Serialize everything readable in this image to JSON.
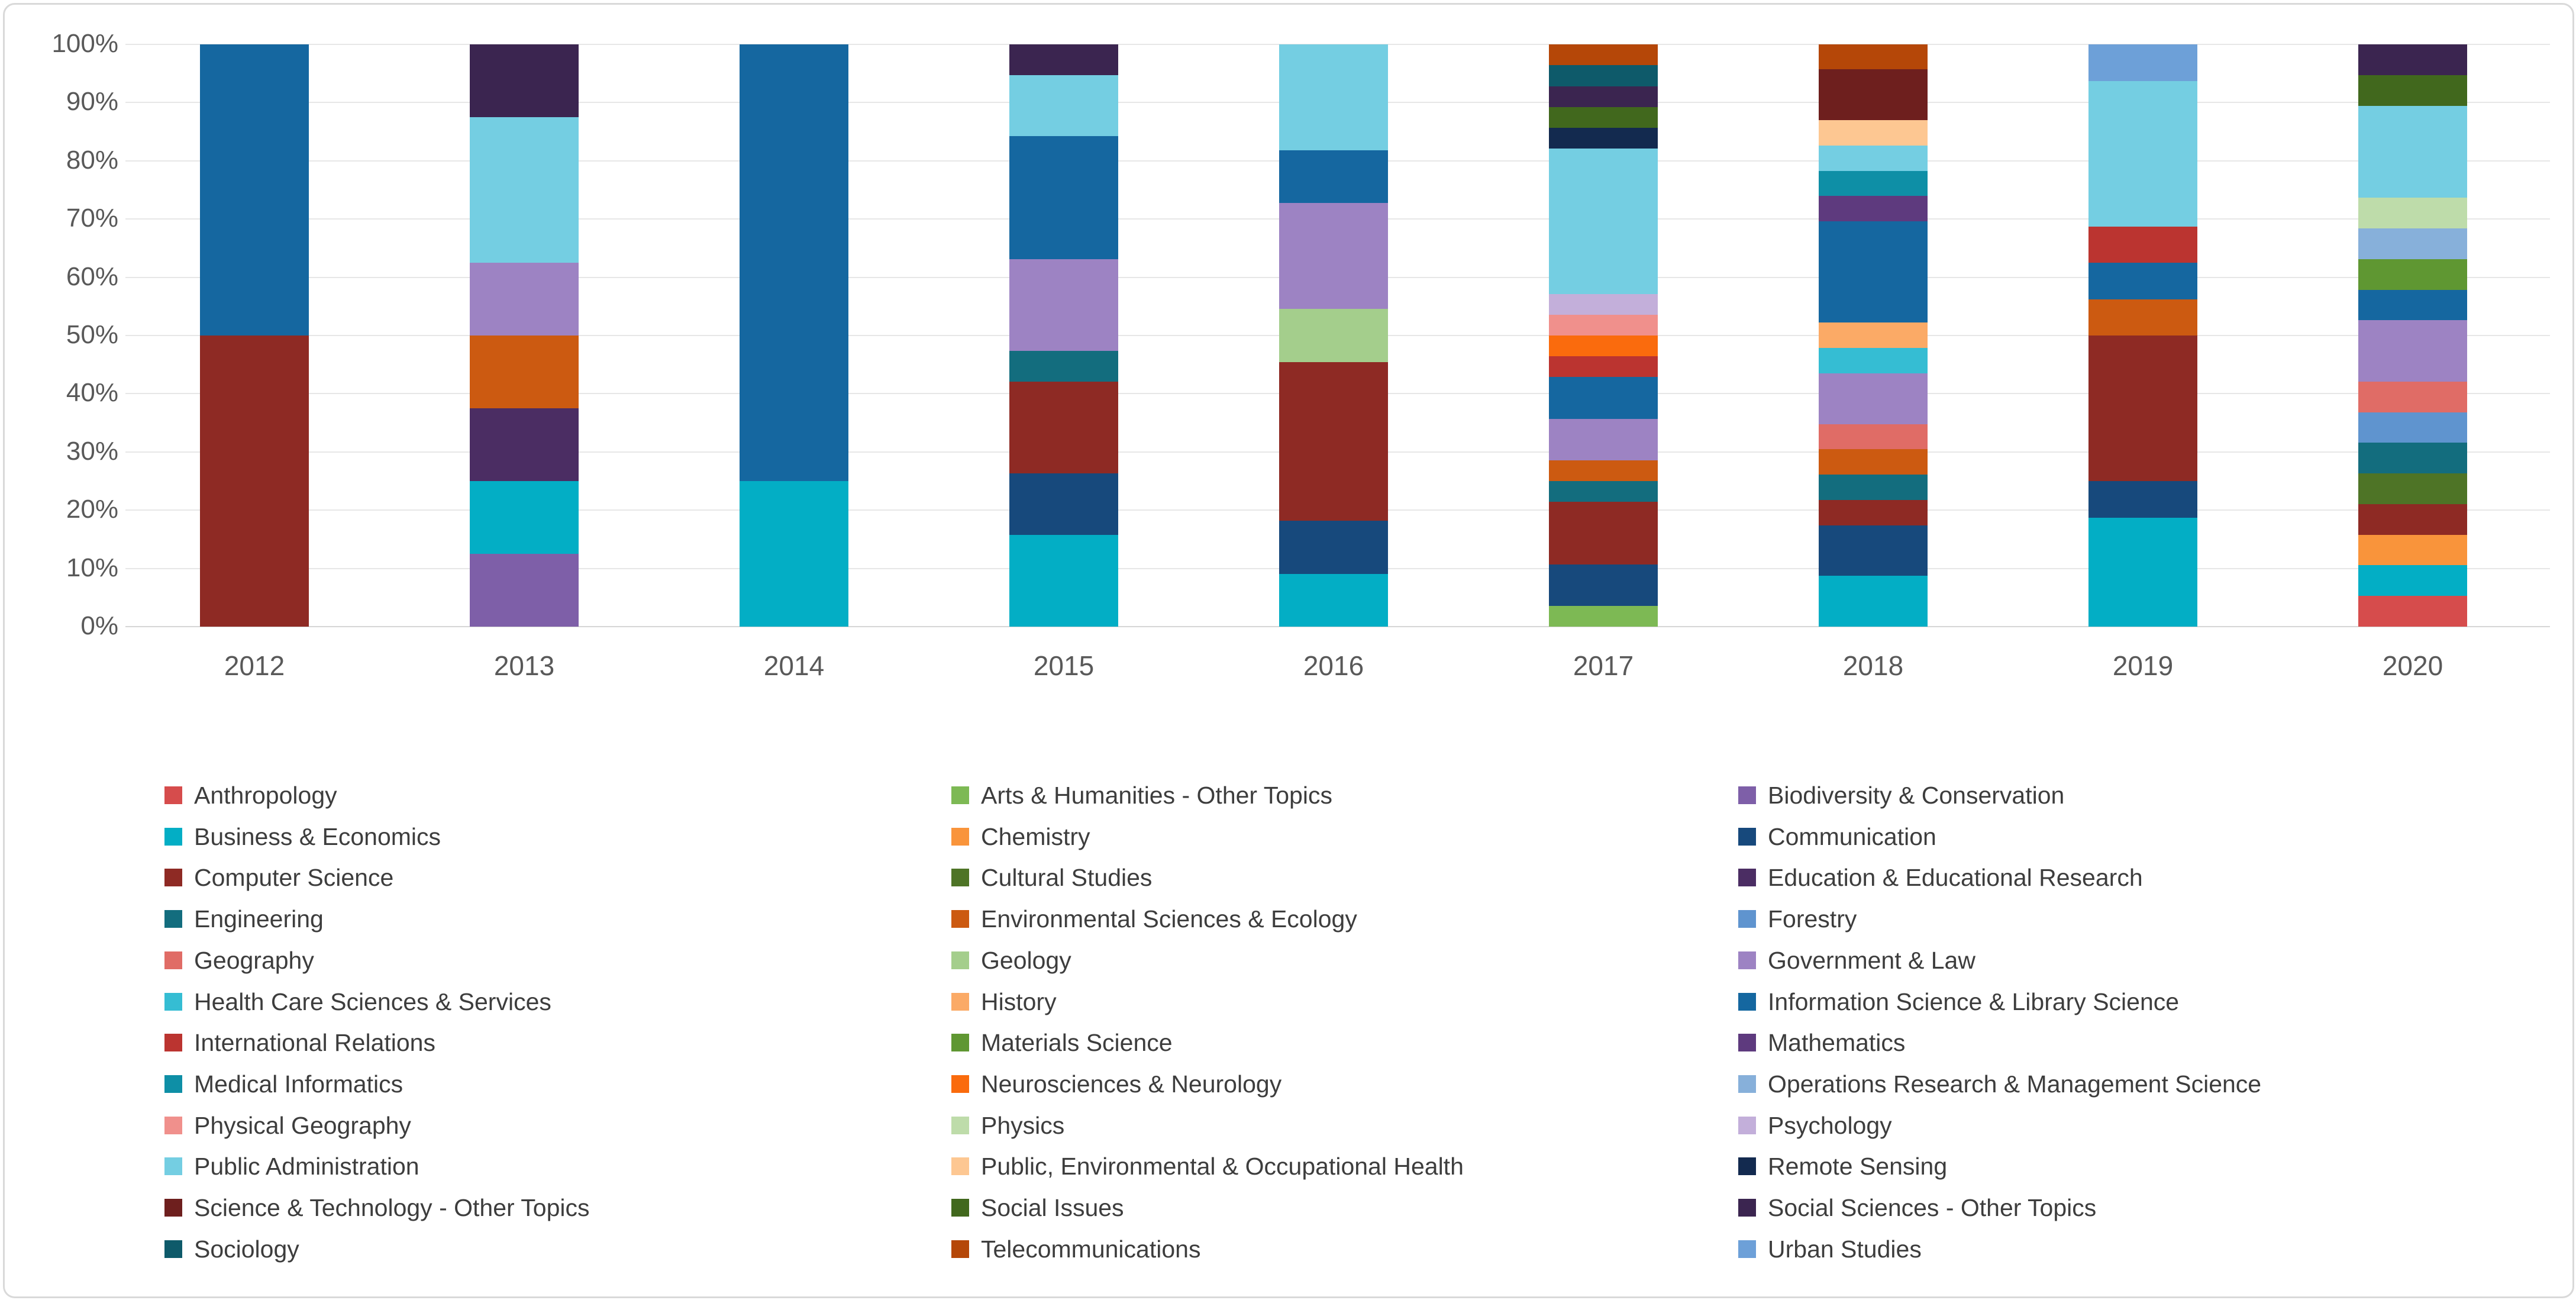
{
  "chart_data": {
    "type": "bar",
    "variant": "100-percent-stacked-column",
    "title": "",
    "xlabel": "",
    "ylabel": "",
    "ylim": [
      0,
      100
    ],
    "grid": "horizontal",
    "legend_position": "bottom",
    "legend_columns": 3,
    "yticks": [
      "0%",
      "10%",
      "20%",
      "30%",
      "40%",
      "50%",
      "60%",
      "70%",
      "80%",
      "90%",
      "100%"
    ],
    "categories": [
      "2012",
      "2013",
      "2014",
      "2015",
      "2016",
      "2017",
      "2018",
      "2019",
      "2020"
    ],
    "stack_order": "alphabetical-bottom-to-top",
    "series": [
      {
        "name": "Anthropology",
        "color": "#d64c4c",
        "values": [
          0,
          0,
          0,
          0,
          0,
          0,
          0,
          0,
          5.26
        ]
      },
      {
        "name": "Arts & Humanities - Other Topics",
        "color": "#7db954",
        "values": [
          0,
          0,
          0,
          0,
          0,
          3.57,
          0,
          0,
          0
        ]
      },
      {
        "name": "Biodiversity & Conservation",
        "color": "#7e5fa8",
        "values": [
          0,
          12.5,
          0,
          0,
          0,
          0,
          0,
          0,
          0
        ]
      },
      {
        "name": "Business & Economics",
        "color": "#03aec5",
        "values": [
          0,
          12.5,
          25,
          15.79,
          9.09,
          0,
          8.7,
          18.75,
          5.26
        ]
      },
      {
        "name": "Chemistry",
        "color": "#f9943b",
        "values": [
          0,
          0,
          0,
          0,
          0,
          0,
          0,
          0,
          5.26
        ]
      },
      {
        "name": "Communication",
        "color": "#17497c",
        "values": [
          0,
          0,
          0,
          10.53,
          9.09,
          7.14,
          8.7,
          6.25,
          0
        ]
      },
      {
        "name": "Computer Science",
        "color": "#8e2a24",
        "values": [
          50,
          0,
          0,
          15.79,
          27.27,
          10.71,
          4.35,
          25,
          5.26
        ]
      },
      {
        "name": "Cultural Studies",
        "color": "#4e7426",
        "values": [
          0,
          0,
          0,
          0,
          0,
          0,
          0,
          0,
          5.26
        ]
      },
      {
        "name": "Education & Educational Research",
        "color": "#4b2d63",
        "values": [
          0,
          12.5,
          0,
          0,
          0,
          0,
          0,
          0,
          0
        ]
      },
      {
        "name": "Engineering",
        "color": "#136d7e",
        "values": [
          0,
          0,
          0,
          5.26,
          0,
          3.57,
          4.35,
          0,
          5.26
        ]
      },
      {
        "name": "Environmental Sciences & Ecology",
        "color": "#cc5a11",
        "values": [
          0,
          12.5,
          0,
          0,
          0,
          3.57,
          4.35,
          6.25,
          0
        ]
      },
      {
        "name": "Forestry",
        "color": "#5f94cf",
        "values": [
          0,
          0,
          0,
          0,
          0,
          0,
          0,
          0,
          5.26
        ]
      },
      {
        "name": "Geography",
        "color": "#e06c66",
        "values": [
          0,
          0,
          0,
          0,
          0,
          0,
          4.35,
          0,
          5.26
        ]
      },
      {
        "name": "Geology",
        "color": "#a4ce8c",
        "values": [
          0,
          0,
          0,
          0,
          9.09,
          0,
          0,
          0,
          0
        ]
      },
      {
        "name": "Government & Law",
        "color": "#9d83c3",
        "values": [
          0,
          12.5,
          0,
          15.79,
          18.18,
          7.14,
          8.7,
          0,
          10.53
        ]
      },
      {
        "name": "Health Care Sciences & Services",
        "color": "#35bdd3",
        "values": [
          0,
          0,
          0,
          0,
          0,
          0,
          4.35,
          0,
          0
        ]
      },
      {
        "name": "History",
        "color": "#fbaa66",
        "values": [
          0,
          0,
          0,
          0,
          0,
          0,
          4.35,
          0,
          0
        ]
      },
      {
        "name": "Information Science & Library Science",
        "color": "#1567a0",
        "values": [
          50,
          0,
          75,
          21.05,
          9.09,
          7.14,
          17.39,
          6.25,
          5.26
        ]
      },
      {
        "name": "International Relations",
        "color": "#bb3430",
        "values": [
          0,
          0,
          0,
          0,
          0,
          3.57,
          0,
          6.25,
          0
        ]
      },
      {
        "name": "Materials Science",
        "color": "#5f9732",
        "values": [
          0,
          0,
          0,
          0,
          0,
          0,
          0,
          0,
          5.26
        ]
      },
      {
        "name": "Mathematics",
        "color": "#5e3a7e",
        "values": [
          0,
          0,
          0,
          0,
          0,
          0,
          4.35,
          0,
          0
        ]
      },
      {
        "name": "Medical Informatics",
        "color": "#0e8fa6",
        "values": [
          0,
          0,
          0,
          0,
          0,
          0,
          4.35,
          0,
          0
        ]
      },
      {
        "name": "Neurosciences & Neurology",
        "color": "#fa6b0d",
        "values": [
          0,
          0,
          0,
          0,
          0,
          3.57,
          0,
          0,
          0
        ]
      },
      {
        "name": "Operations Research & Management Science",
        "color": "#87b0da",
        "values": [
          0,
          0,
          0,
          0,
          0,
          0,
          0,
          0,
          5.26
        ]
      },
      {
        "name": "Physical Geography",
        "color": "#f0908c",
        "values": [
          0,
          0,
          0,
          0,
          0,
          3.57,
          0,
          0,
          0
        ]
      },
      {
        "name": "Physics",
        "color": "#bedcaa",
        "values": [
          0,
          0,
          0,
          0,
          0,
          0,
          0,
          0,
          5.26
        ]
      },
      {
        "name": "Psychology",
        "color": "#c3afda",
        "values": [
          0,
          0,
          0,
          0,
          0,
          3.57,
          0,
          0,
          0
        ]
      },
      {
        "name": "Public Administration",
        "color": "#74cee2",
        "values": [
          0,
          25,
          0,
          10.53,
          18.18,
          25,
          4.35,
          25,
          15.79
        ]
      },
      {
        "name": "Public, Environmental & Occupational Health",
        "color": "#fdc792",
        "values": [
          0,
          0,
          0,
          0,
          0,
          0,
          4.35,
          0,
          0
        ]
      },
      {
        "name": "Remote Sensing",
        "color": "#132a4f",
        "values": [
          0,
          0,
          0,
          0,
          0,
          3.57,
          0,
          0,
          0
        ]
      },
      {
        "name": "Science & Technology - Other Topics",
        "color": "#6e1f1e",
        "values": [
          0,
          0,
          0,
          0,
          0,
          0,
          8.7,
          0,
          0
        ]
      },
      {
        "name": "Social Issues",
        "color": "#41681d",
        "values": [
          0,
          0,
          0,
          0,
          0,
          3.57,
          0,
          0,
          5.26
        ]
      },
      {
        "name": "Social Sciences - Other Topics",
        "color": "#3b2550",
        "values": [
          0,
          12.5,
          0,
          5.26,
          0,
          3.57,
          0,
          0,
          5.26
        ]
      },
      {
        "name": "Sociology",
        "color": "#0e5a6a",
        "values": [
          0,
          0,
          0,
          0,
          0,
          3.57,
          0,
          0,
          0
        ]
      },
      {
        "name": "Telecommunications",
        "color": "#b54708",
        "values": [
          0,
          0,
          0,
          0,
          0,
          3.57,
          4.35,
          0,
          0
        ]
      },
      {
        "name": "Urban Studies",
        "color": "#6da0d8",
        "values": [
          0,
          0,
          0,
          0,
          0,
          0,
          0,
          6.25,
          0
        ]
      }
    ]
  }
}
